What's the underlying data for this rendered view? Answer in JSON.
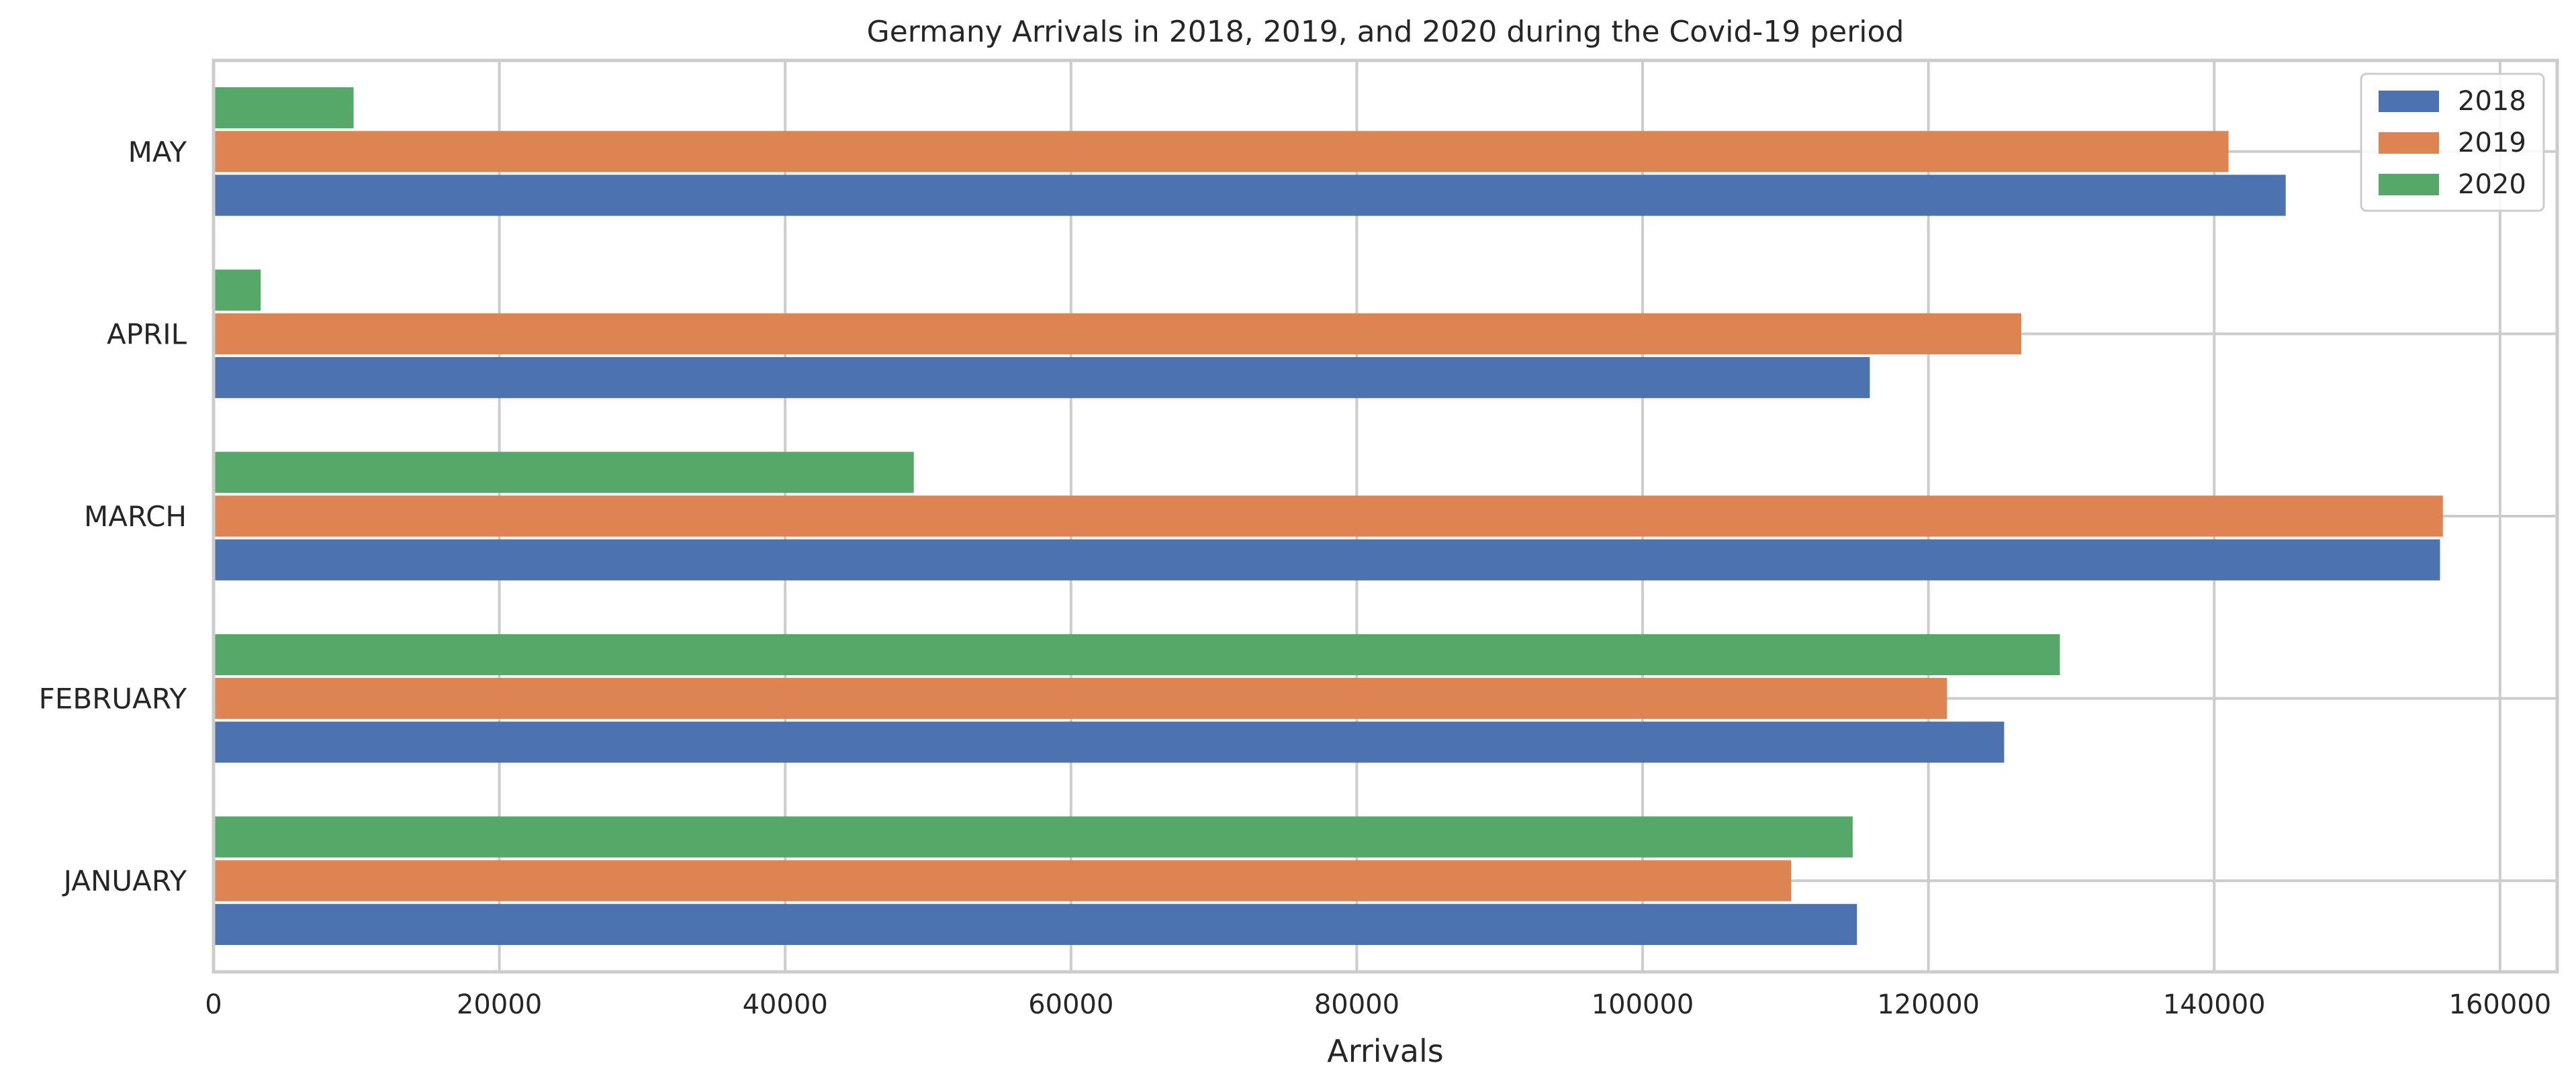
{
  "chart_data": {
    "type": "bar",
    "orientation": "horizontal",
    "title": "Germany Arrivals in 2018, 2019, and 2020 during the Covid-19 period",
    "xlabel": "Arrivals",
    "ylabel": "",
    "categories": [
      "JANUARY",
      "FEBRUARY",
      "MARCH",
      "APRIL",
      "MAY"
    ],
    "series": [
      {
        "name": "2018",
        "color": "#4c72b0",
        "values": [
          115000,
          125300,
          155800,
          115900,
          145000
        ]
      },
      {
        "name": "2019",
        "color": "#dd8452",
        "values": [
          110400,
          121300,
          156000,
          126500,
          141000
        ]
      },
      {
        "name": "2020",
        "color": "#55a868",
        "values": [
          114700,
          129200,
          49000,
          3300,
          9800
        ]
      }
    ],
    "xlim": [
      0,
      164000
    ],
    "xticks": [
      0,
      20000,
      40000,
      60000,
      80000,
      100000,
      120000,
      140000,
      160000
    ],
    "grid": true,
    "legend_position": "top-right"
  }
}
